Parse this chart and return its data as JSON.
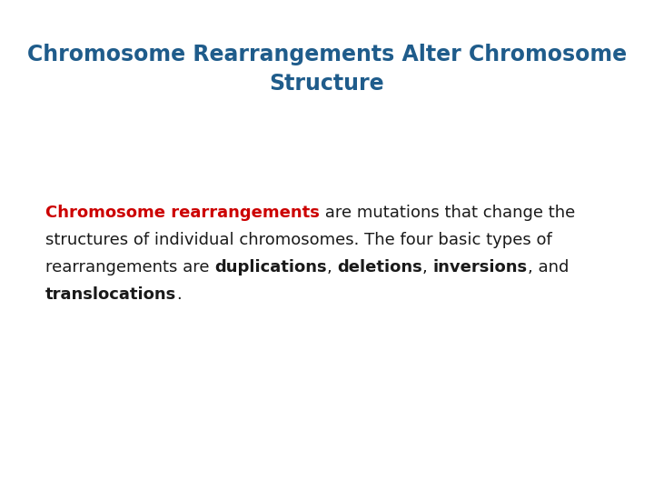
{
  "title_line1": "Chromosome Rearrangements Alter Chromosome",
  "title_line2": "Structure",
  "title_color": "#1f5c8b",
  "title_fontsize": 17,
  "body_fontsize": 13,
  "background_color": "#ffffff",
  "red_phrase": "Chromosome rearrangements",
  "red_color": "#cc0000",
  "normal_color": "#1a1a1a",
  "line1_normal": " are mutations that change the",
  "line2": "structures of individual chromosomes. The four basic types of",
  "line3_normal": "rearrangements are ",
  "line3_bold": "duplications",
  "line3_comma1": ", ",
  "line3_bold2": "deletions",
  "line3_comma2": ", ",
  "line3_bold3": "inversions",
  "line3_comma3": ", and",
  "line4_bold": "translocations",
  "line4_period": "."
}
